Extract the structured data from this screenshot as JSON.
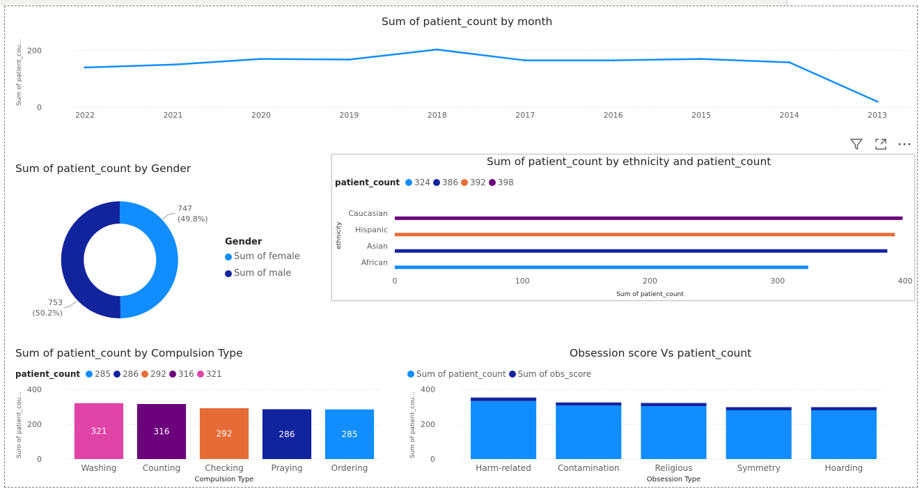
{
  "icons": {
    "filter": "filter-icon",
    "focus": "focus-mode-icon",
    "more": "more-options-icon"
  },
  "colors": {
    "blue": "#118dff",
    "navy": "#12239e",
    "orange": "#e66c37",
    "purple": "#6b007b",
    "pink": "#e044a7"
  },
  "chart_data": [
    {
      "id": "month",
      "type": "line",
      "title": "Sum of patient_count by month",
      "ylabel": "Sum of patient_cou...",
      "x": [
        "2022",
        "2021",
        "2020",
        "2019",
        "2018",
        "2017",
        "2016",
        "2015",
        "2014",
        "2013"
      ],
      "values": [
        140,
        150,
        170,
        168,
        203,
        165,
        165,
        170,
        158,
        20
      ],
      "yticks": [
        0,
        200
      ],
      "ylim": [
        0,
        250
      ],
      "grid": true
    },
    {
      "id": "gender",
      "type": "pie",
      "title": "Sum of patient_count by Gender",
      "legend_title": "Gender",
      "slices": [
        {
          "name": "Sum of female",
          "value": 747,
          "pct": "(49.8%)",
          "color": "#118dff"
        },
        {
          "name": "Sum of male",
          "value": 753,
          "pct": "(50.2%)",
          "color": "#12239e"
        }
      ]
    },
    {
      "id": "ethnicity",
      "type": "bar",
      "orientation": "horizontal",
      "title": "Sum of patient_count by ethnicity and patient_count",
      "legend_title": "patient_count",
      "legend": [
        "324",
        "386",
        "392",
        "398"
      ],
      "ylabel": "ethnicity",
      "xlabel": "Sum of patient_count",
      "xlim": [
        0,
        400
      ],
      "xticks": [
        0,
        100,
        200,
        300,
        400
      ],
      "categories": [
        "Caucasian",
        "Hispanic",
        "Asian",
        "African"
      ],
      "values": [
        398,
        392,
        386,
        324
      ],
      "colors": [
        "#6b007b",
        "#e66c37",
        "#12239e",
        "#118dff"
      ]
    },
    {
      "id": "compulsion",
      "type": "bar",
      "title": "Sum of patient_count by Compulsion Type",
      "legend_title": "patient_count",
      "legend": [
        "285",
        "286",
        "292",
        "316",
        "321"
      ],
      "legend_colors": [
        "#118dff",
        "#12239e",
        "#e66c37",
        "#6b007b",
        "#e044a7"
      ],
      "ylabel": "Sum of patient_cou...",
      "xlabel": "Compulsion Type",
      "ylim": [
        0,
        400
      ],
      "yticks": [
        0,
        200,
        400
      ],
      "categories": [
        "Washing",
        "Counting",
        "Checking",
        "Praying",
        "Ordering"
      ],
      "values": [
        321,
        316,
        292,
        286,
        285
      ],
      "value_labels": [
        "321",
        "316",
        "292",
        "286",
        "285"
      ],
      "colors": [
        "#e044a7",
        "#6b007b",
        "#e66c37",
        "#12239e",
        "#118dff"
      ]
    },
    {
      "id": "obsession",
      "type": "bar",
      "stacked": true,
      "title": "Obsession score Vs patient_count",
      "ylabel": "Sum of patient_cou...",
      "xlabel": "Obsession Type",
      "ylim": [
        0,
        400
      ],
      "yticks": [
        0,
        200,
        400
      ],
      "categories": [
        "Harm-related",
        "Contamination",
        "Religious",
        "Symmetry",
        "Hoarding"
      ],
      "series": [
        {
          "name": "Sum of patient_count",
          "color": "#118dff",
          "values": [
            333,
            307,
            304,
            280,
            280
          ]
        },
        {
          "name": "Sum of obs_score",
          "color": "#12239e",
          "values": [
            20,
            18,
            18,
            18,
            18
          ]
        }
      ]
    }
  ]
}
